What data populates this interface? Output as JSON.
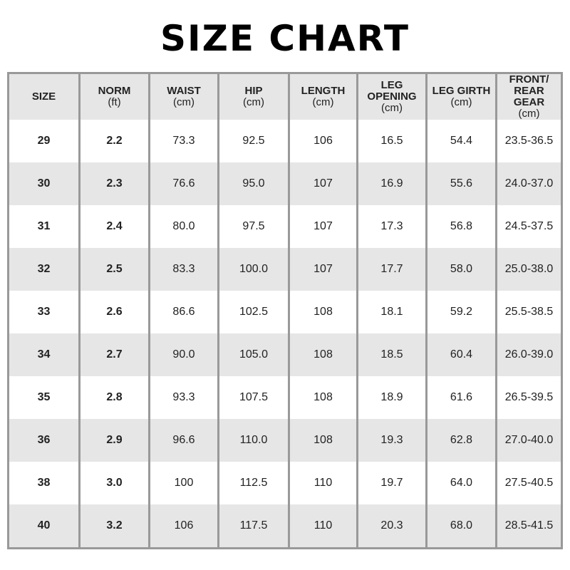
{
  "title": "SIZE CHART",
  "colors": {
    "stripe": "#e6e6e6",
    "border": "#999999"
  },
  "headers": [
    {
      "label": "SIZE",
      "unit": ""
    },
    {
      "label": "NORM",
      "unit": "(ft)"
    },
    {
      "label": "WAIST",
      "unit": "(cm)"
    },
    {
      "label": "HIP",
      "unit": "(cm)"
    },
    {
      "label": "LENGTH",
      "unit": "(cm)"
    },
    {
      "label": "LEG OPENING",
      "unit": "(cm)"
    },
    {
      "label": "LEG GIRTH",
      "unit": "(cm)"
    },
    {
      "label": "FRONT/ REAR GEAR",
      "unit": "(cm)"
    }
  ],
  "rows": [
    [
      "29",
      "2.2",
      "73.3",
      "92.5",
      "106",
      "16.5",
      "54.4",
      "23.5-36.5"
    ],
    [
      "30",
      "2.3",
      "76.6",
      "95.0",
      "107",
      "16.9",
      "55.6",
      "24.0-37.0"
    ],
    [
      "31",
      "2.4",
      "80.0",
      "97.5",
      "107",
      "17.3",
      "56.8",
      "24.5-37.5"
    ],
    [
      "32",
      "2.5",
      "83.3",
      "100.0",
      "107",
      "17.7",
      "58.0",
      "25.0-38.0"
    ],
    [
      "33",
      "2.6",
      "86.6",
      "102.5",
      "108",
      "18.1",
      "59.2",
      "25.5-38.5"
    ],
    [
      "34",
      "2.7",
      "90.0",
      "105.0",
      "108",
      "18.5",
      "60.4",
      "26.0-39.0"
    ],
    [
      "35",
      "2.8",
      "93.3",
      "107.5",
      "108",
      "18.9",
      "61.6",
      "26.5-39.5"
    ],
    [
      "36",
      "2.9",
      "96.6",
      "110.0",
      "108",
      "19.3",
      "62.8",
      "27.0-40.0"
    ],
    [
      "38",
      "3.0",
      "100",
      "112.5",
      "110",
      "19.7",
      "64.0",
      "27.5-40.5"
    ],
    [
      "40",
      "3.2",
      "106",
      "117.5",
      "110",
      "20.3",
      "68.0",
      "28.5-41.5"
    ]
  ]
}
